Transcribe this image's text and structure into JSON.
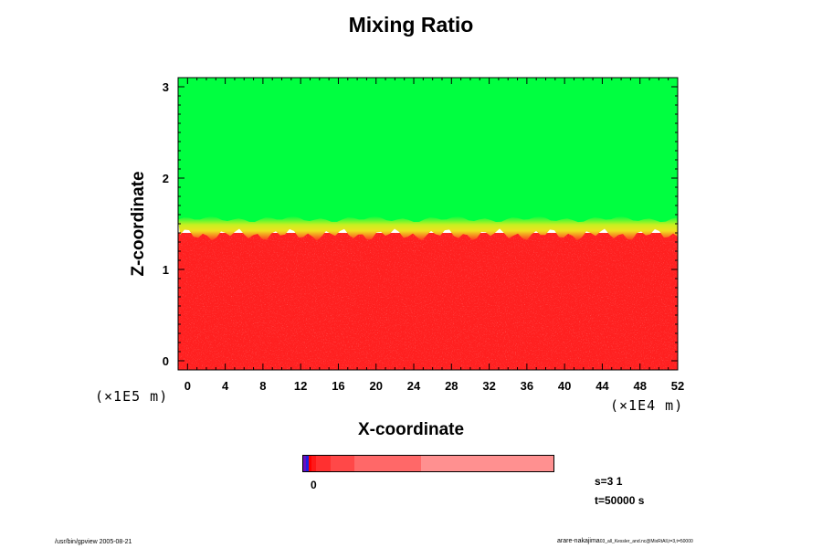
{
  "chart_data": {
    "type": "heatmap",
    "title": "Mixing Ratio",
    "xlabel": "X-coordinate",
    "ylabel": "Z-coordinate",
    "x_scale_label": "(×1E4 m)",
    "y_scale_label": "(×1E5 m)",
    "xlim": [
      -1,
      52
    ],
    "ylim": [
      -0.1,
      3.1
    ],
    "x_ticks": [
      0,
      4,
      8,
      12,
      16,
      20,
      24,
      28,
      32,
      36,
      40,
      44,
      48,
      52
    ],
    "y_ticks": [
      0,
      1,
      2,
      3
    ],
    "regions": [
      {
        "name": "upper",
        "z_from": 1.5,
        "z_to": 3.1,
        "color": "#00ff40"
      },
      {
        "name": "transition",
        "z_from": 1.38,
        "z_to": 1.55,
        "color": "#e0e020"
      },
      {
        "name": "lower",
        "z_from": -0.1,
        "z_to": 1.4,
        "color": "#ff2020"
      }
    ],
    "colorbar": {
      "label": "0",
      "segments": [
        {
          "color": "#6a10c0",
          "weight": 3
        },
        {
          "color": "#2020e0",
          "weight": 2
        },
        {
          "color": "#ff0000",
          "weight": 3
        },
        {
          "color": "#ff1818",
          "weight": 5
        },
        {
          "color": "#ff3030",
          "weight": 14
        },
        {
          "color": "#ff4848",
          "weight": 24
        },
        {
          "color": "#ff6868",
          "weight": 66
        },
        {
          "color": "#ff9090",
          "weight": 132
        }
      ]
    },
    "info": {
      "s": "s=3 1",
      "t": "t=50000 s"
    }
  },
  "footer": {
    "left": "/usr/bin/gpview 2005-08-21",
    "right_main": "arare-nakajima",
    "right_small": "03_all_Kessler_and.nc@MixRtAll,t=3,t=50000"
  },
  "colors": {
    "axis": "#000000",
    "background": "#ffffff"
  }
}
